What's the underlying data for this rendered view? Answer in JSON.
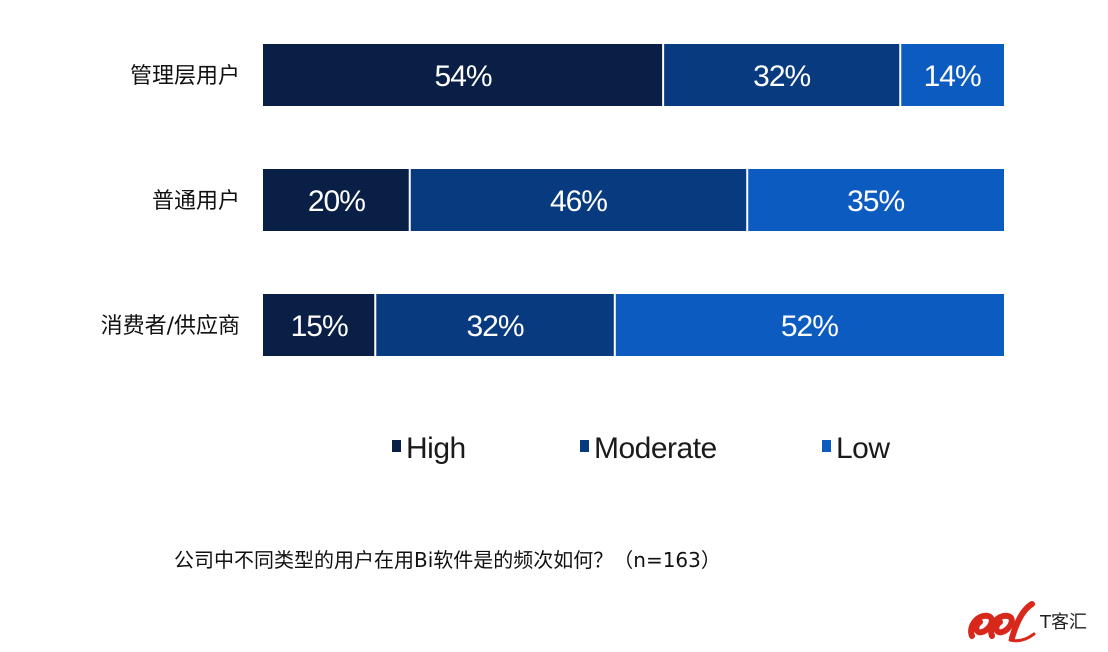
{
  "chart_data": {
    "type": "bar",
    "orientation": "horizontal",
    "stacked": true,
    "categories": [
      "管理层用户",
      "普通用户",
      "消费者/供应商"
    ],
    "series": [
      {
        "name": "High",
        "values": [
          54,
          20,
          15
        ],
        "color": "#0a1f45"
      },
      {
        "name": "Moderate",
        "values": [
          32,
          46,
          32
        ],
        "color": "#083a80"
      },
      {
        "name": "Low",
        "values": [
          14,
          35,
          52
        ],
        "color": "#0c5bc0"
      }
    ],
    "value_suffix": "%",
    "legend_position": "bottom",
    "grid": false
  },
  "caption": "公司中不同类型的用户在用Bi软件是的频次如何？（n=163）",
  "watermark": {
    "text": "T客汇",
    "logo_icon": "tkehui-logo-icon",
    "logo_color": "#d8281c"
  }
}
